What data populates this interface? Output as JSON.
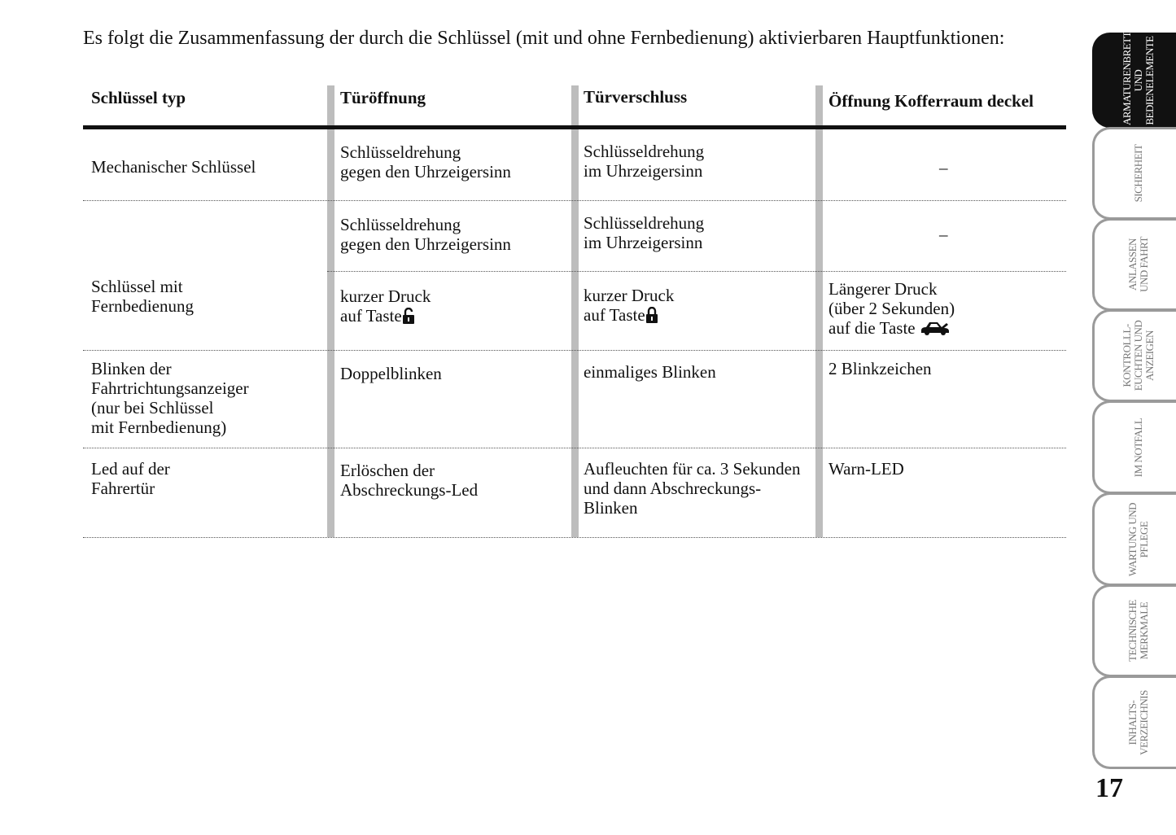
{
  "intro": "Es folgt die Zusammenfassung der durch die Schlüssel (mit und ohne Fernbedienung) aktivierbaren Hauptfunktionen:",
  "table": {
    "headers": [
      "Schlüssel typ",
      "Türöffnung",
      "Türverschluss",
      "Öffnung Kofferraum deckel"
    ],
    "rows": [
      {
        "key": "Mechanischer Schlüssel",
        "open": "Schlüsseldrehung\ngegen den Uhrzeigersinn",
        "close": "Schlüsseldrehung\nim Uhrzeigersinn",
        "trunk": "–"
      },
      {
        "key": "Schlüssel mit\nFernbedienung",
        "open": "Schlüsseldrehung\ngegen den Uhrzeigersinn",
        "close": "Schlüsseldrehung\nim Uhrzeigersinn",
        "trunk": "–"
      },
      {
        "open": "kurzer Druck\nauf Taste",
        "close": "kurzer Druck\nauf Taste",
        "trunk": "Längerer Druck\n(über 2 Sekunden)\nauf die Taste",
        "open_icon": "padlock-open-icon",
        "close_icon": "padlock-closed-icon",
        "trunk_icon": "car-trunk-icon"
      },
      {
        "key": "Blinken der\nFahrtrichtungsanzeiger\n(nur bei Schlüssel\nmit Fernbedienung)",
        "open": "Doppelblinken",
        "close": "einmaliges Blinken",
        "trunk": "2 Blinkzeichen"
      },
      {
        "key": "Led auf der\nFahrertür",
        "open": "Erlöschen der\nAbschreckungs-Led",
        "close": "Aufleuchten für ca. 3 Sekunden\nund dann Abschreckungs-\nBlinken",
        "trunk": "Warn-LED"
      }
    ]
  },
  "tabs": [
    {
      "label": "ARMATURENBRETT\nUND\nBEDIENELEMENTE",
      "active": true
    },
    {
      "label": "SICHERHEIT"
    },
    {
      "label": "ANLASSEN\nUND FAHRT"
    },
    {
      "label": "KONTROLLL-\nEUCHTEN UND\nANZEIGEN"
    },
    {
      "label": "IM NOTFALL"
    },
    {
      "label": "WARTUNG UND\nPFLEGE"
    },
    {
      "label": "TECHNISCHE\nMERKMALE"
    },
    {
      "label": "INHALTS-\nVERZEICHNIS"
    }
  ],
  "page_number": "17"
}
